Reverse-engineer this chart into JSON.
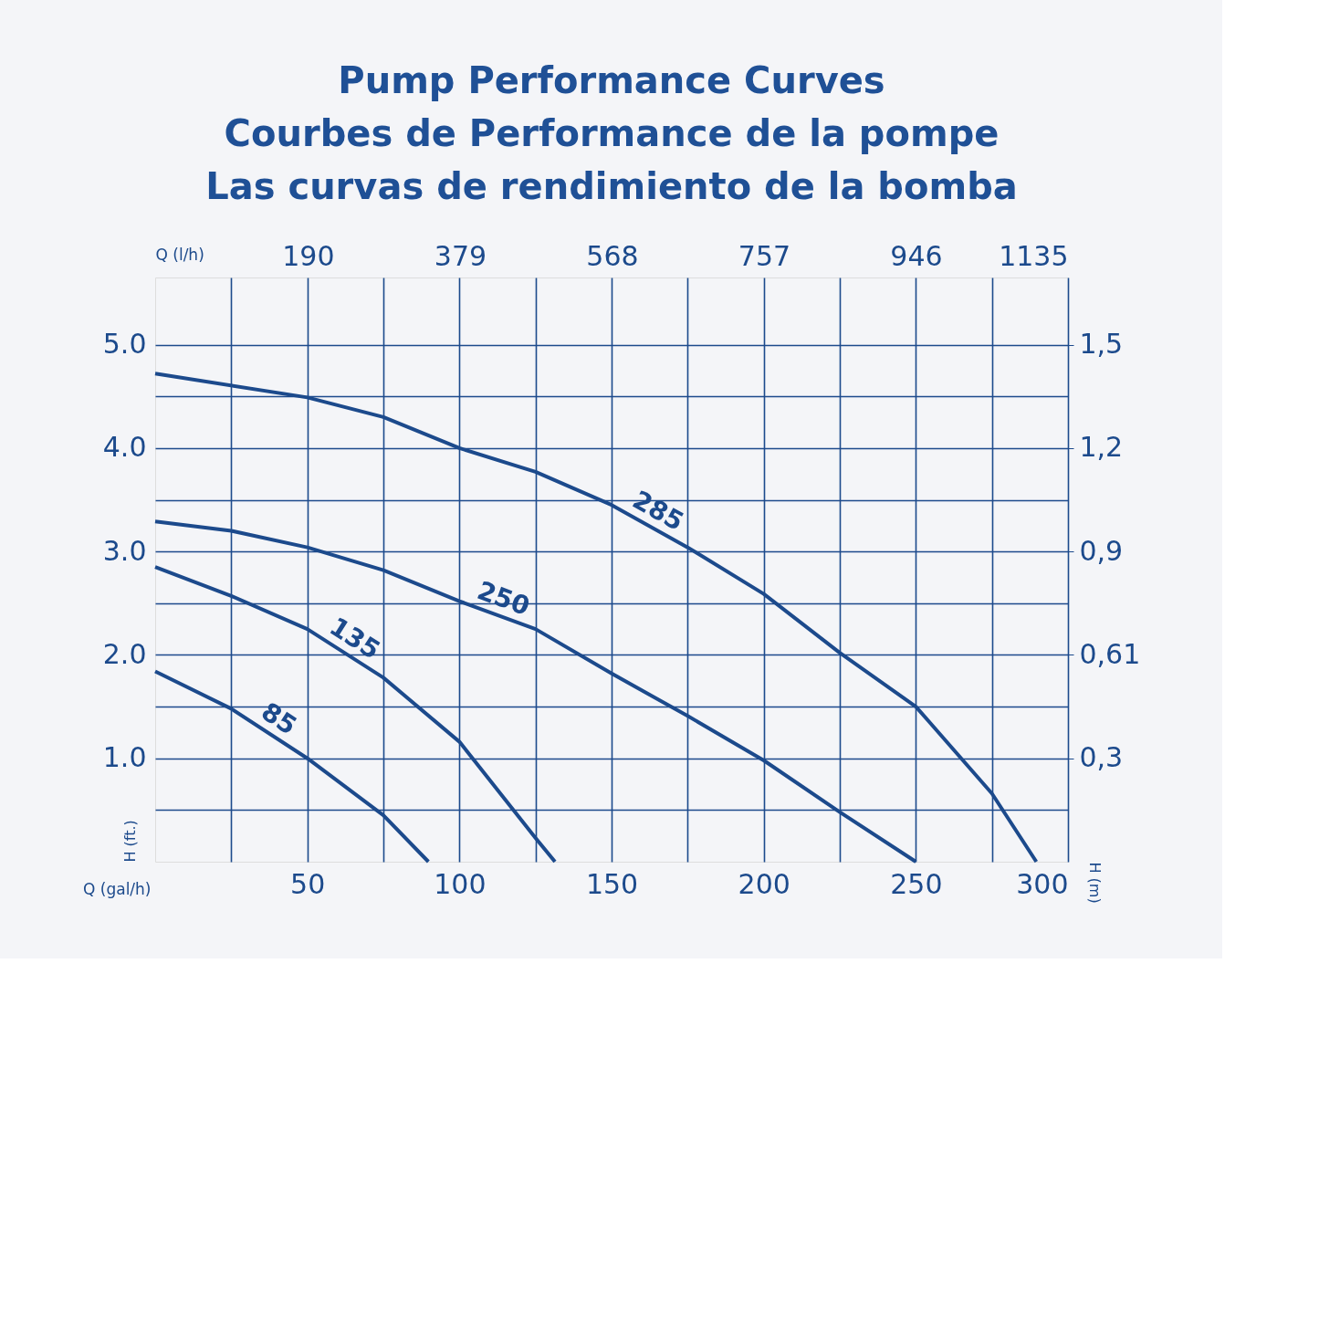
{
  "chart_data": {
    "type": "line",
    "title": "Pump Performance Curves\nCourbes de Performance de la pompe\nLas curvas de rendimiento de la bomba",
    "xlabel": "Q (gal/h)",
    "x2label": "Q (l/h)",
    "ylabel": "H (ft.)",
    "y2label": "H (m)",
    "xlim": [
      0,
      300
    ],
    "xticks": [
      {
        "value": 25,
        "label": null
      },
      50,
      {
        "value": 75,
        "label": null
      },
      100,
      {
        "value": 125,
        "label": null
      },
      150,
      {
        "value": 175,
        "label": null
      },
      200,
      {
        "value": 225,
        "label": null
      },
      250,
      {
        "value": 275,
        "label": null
      },
      300
    ],
    "x2lim": [
      0,
      1135
    ],
    "x2ticks": [
      190,
      379,
      568,
      757,
      946,
      1135
    ],
    "ylim": [
      0,
      5.65
    ],
    "yticks": [
      {
        "value": 0.5,
        "label": null
      },
      {
        "value": 1,
        "label": "1.0"
      },
      {
        "value": 1.5,
        "label": null
      },
      {
        "value": 2,
        "label": "2.0"
      },
      {
        "value": 2.5,
        "label": null
      },
      {
        "value": 3,
        "label": "3.0"
      },
      {
        "value": 3.5,
        "label": null
      },
      {
        "value": 4,
        "label": "4.0"
      },
      {
        "value": 4.5,
        "label": null
      },
      {
        "value": 5,
        "label": "5.0"
      }
    ],
    "y2lim": [
      0,
      1.722
    ],
    "y2ticks": [
      {
        "value": 0.3048,
        "label": "0,3"
      },
      {
        "value": 0.6096,
        "label": "0,61"
      },
      {
        "value": 0.9144,
        "label": "0,9"
      },
      {
        "value": 1.2192,
        "label": "1,2"
      },
      {
        "value": 1.524,
        "label": "1,5"
      }
    ],
    "grid": true,
    "legend": false,
    "marker": "none",
    "line_style": "solid",
    "series": [
      {
        "name": "285",
        "color": "#1c4a8c",
        "x": [
          0,
          50,
          75,
          100,
          125,
          150,
          175,
          200,
          225,
          250,
          275,
          289.6
        ],
        "values": [
          4.72,
          4.49,
          4.3,
          4.0,
          3.77,
          3.45,
          3.04,
          2.59,
          2.02,
          1.5,
          0.66,
          0
        ]
      },
      {
        "name": "250",
        "color": "#1c4a8c",
        "x": [
          0,
          25,
          50,
          75,
          100,
          125,
          150,
          175,
          200,
          225,
          250
        ],
        "values": [
          3.29,
          3.2,
          3.04,
          2.82,
          2.52,
          2.25,
          1.82,
          1.41,
          0.98,
          0.48,
          0
        ]
      },
      {
        "name": "135",
        "color": "#1c4a8c",
        "x": [
          0,
          25,
          50,
          75,
          100,
          125,
          131.4
        ],
        "values": [
          2.85,
          2.57,
          2.25,
          1.78,
          1.16,
          0.23,
          0
        ]
      },
      {
        "name": "85",
        "color": "#1c4a8c",
        "x": [
          0,
          25,
          50,
          75,
          89.8
        ],
        "values": [
          1.84,
          1.48,
          1.0,
          0.45,
          0
        ]
      }
    ]
  }
}
